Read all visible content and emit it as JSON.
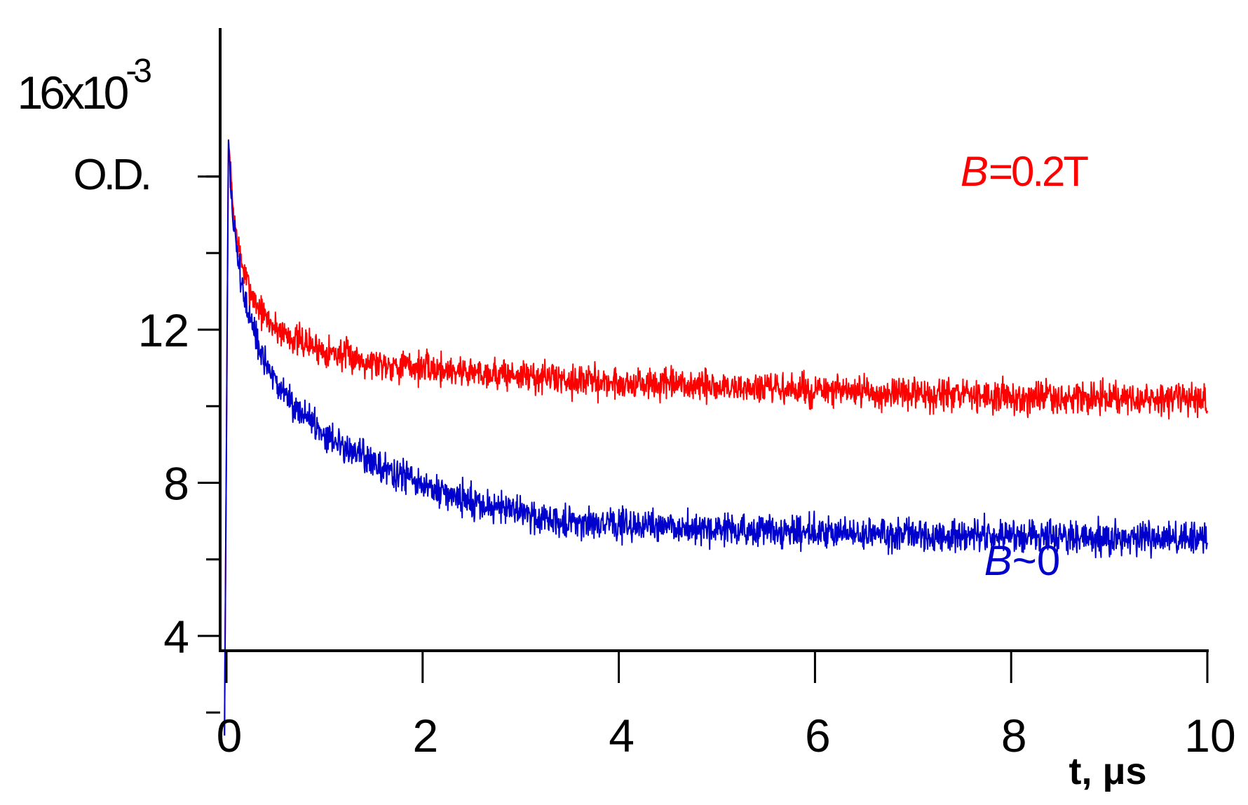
{
  "chart_data": {
    "type": "line",
    "title": "",
    "xlabel": "t, μs",
    "ylabel": "O.D.",
    "y_multiplier_label": "16x10",
    "y_multiplier_exponent": "-3",
    "xlim": [
      0,
      10
    ],
    "ylim": [
      1,
      17.5
    ],
    "x_ticks": [
      "0",
      "2",
      "4",
      "6",
      "8",
      "10"
    ],
    "x_tick_values": [
      0,
      2,
      4,
      6,
      8,
      10
    ],
    "y_ticks": [
      "4",
      "8",
      "12"
    ],
    "y_tick_values": [
      4,
      8,
      12
    ],
    "y_minor_tick_values": [
      2,
      6,
      10,
      14,
      16
    ],
    "grid": false,
    "series": [
      {
        "name": "B=0.2T",
        "legend_italic": "B",
        "legend_rest": "=0.2T",
        "color": "#ff0000",
        "noise_amplitude": 0.32,
        "x": [
          -0.02,
          0.02,
          0.04,
          0.06,
          0.1,
          0.15,
          0.2,
          0.3,
          0.4,
          0.5,
          0.7,
          1.0,
          1.5,
          2.0,
          3.0,
          4.0,
          5.0,
          6.0,
          7.0,
          8.0,
          9.0,
          10.0
        ],
        "y": [
          1.4,
          17.0,
          16.1,
          15.4,
          14.5,
          13.8,
          13.3,
          12.7,
          12.3,
          12.05,
          11.75,
          11.45,
          11.15,
          11.0,
          10.8,
          10.6,
          10.5,
          10.4,
          10.3,
          10.25,
          10.2,
          10.15
        ]
      },
      {
        "name": "B~0",
        "legend_italic": "B",
        "legend_rest": "~0",
        "color": "#0000cc",
        "noise_amplitude": 0.32,
        "x": [
          -0.02,
          0.02,
          0.04,
          0.06,
          0.1,
          0.15,
          0.2,
          0.3,
          0.4,
          0.5,
          0.7,
          1.0,
          1.5,
          2.0,
          2.5,
          3.0,
          3.5,
          4.0,
          5.0,
          6.0,
          7.0,
          8.0,
          9.0,
          10.0
        ],
        "y": [
          1.4,
          17.0,
          15.9,
          15.1,
          14.1,
          13.3,
          12.6,
          11.7,
          11.1,
          10.6,
          10.0,
          9.3,
          8.5,
          7.9,
          7.5,
          7.2,
          7.0,
          6.9,
          6.8,
          6.7,
          6.65,
          6.6,
          6.55,
          6.55
        ]
      }
    ]
  }
}
